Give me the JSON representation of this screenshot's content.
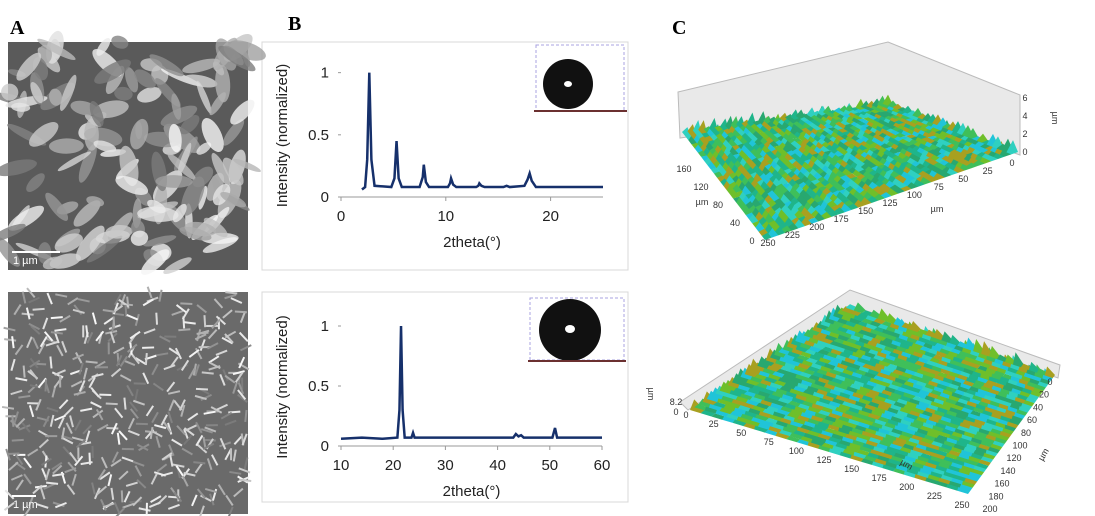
{
  "panel_labels": [
    "A",
    "B",
    "C"
  ],
  "sem_images": [
    {
      "scale_bar": "1 µm"
    },
    {
      "scale_bar": "1 µm"
    }
  ],
  "chart_data": [
    {
      "type": "line",
      "y_label": "Intensity (normalized)",
      "x_label": "2theta(°)",
      "color": "#16306b",
      "x": [
        2,
        2.3,
        2.5,
        2.7,
        2.9,
        3.2,
        4.8,
        5.1,
        5.3,
        5.5,
        5.8,
        7.5,
        7.8,
        7.9,
        8.1,
        8.4,
        10.2,
        10.4,
        10.5,
        10.7,
        11,
        12.9,
        13.1,
        13.2,
        13.4,
        13.7,
        15.5,
        15.8,
        16.1,
        17.5,
        17.8,
        18,
        18.2,
        18.6,
        21,
        25
      ],
      "values": [
        0.06,
        0.08,
        0.3,
        1,
        0.3,
        0.09,
        0.08,
        0.15,
        0.45,
        0.15,
        0.08,
        0.08,
        0.16,
        0.26,
        0.12,
        0.08,
        0.08,
        0.11,
        0.15,
        0.1,
        0.08,
        0.08,
        0.09,
        0.11,
        0.09,
        0.08,
        0.08,
        0.09,
        0.08,
        0.09,
        0.14,
        0.19,
        0.13,
        0.08,
        0.08,
        0.08
      ],
      "xlim": [
        0,
        25
      ],
      "xticks": [
        0,
        10,
        20
      ],
      "ylim": [
        0,
        1.15
      ],
      "yticks": [
        0,
        0.5,
        1
      ]
    },
    {
      "type": "line",
      "y_label": "Intensity (normalized)",
      "x_label": "2theta(°)",
      "color": "#16306b",
      "x": [
        10,
        14,
        18,
        20.8,
        21.2,
        21.5,
        21.8,
        22.2,
        23.5,
        23.8,
        24.1,
        30,
        36,
        43,
        43.5,
        44,
        44.5,
        45,
        50.5,
        51,
        51.4,
        55,
        60
      ],
      "values": [
        0.06,
        0.07,
        0.06,
        0.07,
        0.3,
        1,
        0.3,
        0.07,
        0.07,
        0.11,
        0.07,
        0.07,
        0.07,
        0.07,
        0.1,
        0.08,
        0.09,
        0.07,
        0.07,
        0.15,
        0.07,
        0.07,
        0.07
      ],
      "xlim": [
        10,
        60
      ],
      "xticks": [
        10,
        20,
        30,
        40,
        50,
        60
      ],
      "ylim": [
        0,
        1.15
      ],
      "yticks": [
        0,
        0.5,
        1
      ]
    }
  ],
  "surface_plots": [
    {
      "x_ticks": [
        250,
        225,
        200,
        175,
        150,
        125,
        100,
        75,
        50,
        25,
        0
      ],
      "x_unit": "µm",
      "y_ticks": [
        160,
        120,
        80,
        40,
        0
      ],
      "y_unit": "µm",
      "z_ticks": [
        6,
        4,
        2,
        0
      ],
      "z_unit": "µm"
    },
    {
      "x_ticks": [
        0,
        25,
        50,
        75,
        100,
        125,
        150,
        175,
        200,
        225,
        250
      ],
      "x_unit": "µm",
      "y_ticks": [
        0,
        20,
        40,
        60,
        80,
        100,
        120,
        140,
        160,
        180,
        200
      ],
      "y_unit": "µm",
      "z_ticks": [
        8.2,
        0
      ],
      "z_unit": "µm"
    }
  ]
}
